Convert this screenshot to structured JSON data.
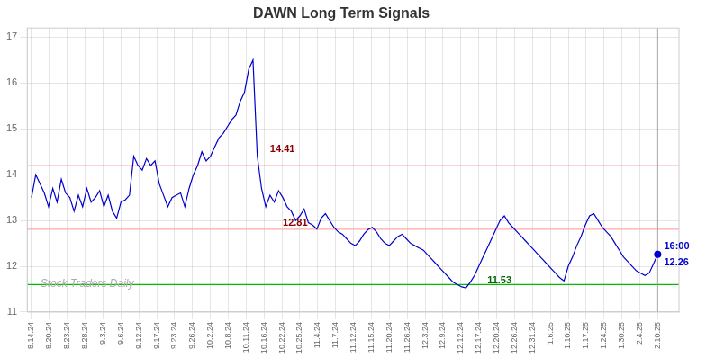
{
  "chart_data": {
    "type": "line",
    "title": "DAWN Long Term Signals",
    "title_color": "#333333",
    "x": [
      0,
      1,
      2,
      3,
      4,
      5,
      6,
      7,
      8,
      9,
      10,
      11,
      12,
      13,
      14,
      15,
      16,
      17,
      18,
      19,
      20,
      21,
      22,
      23,
      24,
      25,
      26,
      27,
      28,
      29,
      30,
      31,
      32,
      33,
      34,
      35,
      36,
      37,
      38,
      39,
      40,
      41,
      42,
      43,
      44,
      45,
      46,
      47,
      48,
      49,
      50,
      51,
      52,
      53,
      54,
      55,
      56,
      57,
      58,
      59,
      60,
      61,
      62,
      63,
      64,
      65,
      66,
      67,
      68,
      69,
      70,
      71,
      72,
      73,
      74,
      75,
      76,
      77,
      78,
      79,
      80,
      81,
      82,
      83,
      84,
      85,
      86,
      87,
      88,
      89,
      90,
      91,
      92,
      93,
      94,
      95,
      96,
      97,
      98,
      99,
      100,
      101,
      102,
      103,
      104,
      105,
      106,
      107,
      108,
      109,
      110,
      111,
      112,
      113,
      114,
      115,
      116,
      117,
      118,
      119,
      120,
      121,
      122,
      123,
      124,
      125,
      126,
      127,
      128,
      129,
      130,
      131,
      132,
      133,
      134,
      135,
      136,
      137,
      138,
      139,
      140,
      141,
      142,
      143,
      144,
      145,
      146,
      147
    ],
    "series": [
      {
        "type": "line",
        "color": "#0000cc",
        "values": [
          13.5,
          14.0,
          13.8,
          13.6,
          13.3,
          13.7,
          13.4,
          13.9,
          13.6,
          13.5,
          13.2,
          13.55,
          13.3,
          13.7,
          13.4,
          13.5,
          13.65,
          13.3,
          13.55,
          13.2,
          13.05,
          13.4,
          13.45,
          13.55,
          14.4,
          14.2,
          14.1,
          14.35,
          14.2,
          14.3,
          13.8,
          13.55,
          13.3,
          13.5,
          13.55,
          13.6,
          13.3,
          13.7,
          14.0,
          14.2,
          14.5,
          14.3,
          14.4,
          14.6,
          14.8,
          14.9,
          15.05,
          15.2,
          15.3,
          15.6,
          15.8,
          16.3,
          16.5,
          14.41,
          13.7,
          13.3,
          13.55,
          13.4,
          13.65,
          13.5,
          13.3,
          13.2,
          13.0,
          13.1,
          13.25,
          12.95,
          12.9,
          12.81,
          13.05,
          13.15,
          13.0,
          12.85,
          12.75,
          12.7,
          12.6,
          12.5,
          12.45,
          12.55,
          12.7,
          12.8,
          12.85,
          12.75,
          12.6,
          12.5,
          12.45,
          12.55,
          12.65,
          12.7,
          12.6,
          12.5,
          12.45,
          12.4,
          12.35,
          12.25,
          12.15,
          12.05,
          11.95,
          11.85,
          11.75,
          11.65,
          11.6,
          11.55,
          11.53,
          11.65,
          11.8,
          12.0,
          12.2,
          12.4,
          12.6,
          12.8,
          13.0,
          13.1,
          12.95,
          12.85,
          12.75,
          12.65,
          12.55,
          12.45,
          12.35,
          12.25,
          12.15,
          12.05,
          11.95,
          11.85,
          11.75,
          11.68,
          12.0,
          12.2,
          12.45,
          12.65,
          12.9,
          13.1,
          13.15,
          13.0,
          12.85,
          12.75,
          12.65,
          12.5,
          12.35,
          12.2,
          12.1,
          12.0,
          11.9,
          11.85,
          11.8,
          11.85,
          12.05,
          12.26
        ]
      },
      {
        "type": "scatter",
        "color": "#0000cc",
        "marker": "circle",
        "x": [
          147
        ],
        "values": [
          12.26
        ]
      }
    ],
    "hlines": [
      {
        "y": 14.2,
        "color": "#ffaaaa"
      },
      {
        "y": 12.81,
        "color": "#ffaaaa"
      },
      {
        "y": 11.6,
        "color": "#00bb00"
      }
    ],
    "vlines": [
      {
        "x": 147,
        "color": "#999999"
      }
    ],
    "annotations": [
      {
        "text": "14.41",
        "color": "#8b0000",
        "x": 56,
        "y": 14.55
      },
      {
        "text": "12.81",
        "color": "#8b0000",
        "x": 59,
        "y": 12.95
      },
      {
        "text": "11.53",
        "color": "#006600",
        "x": 107,
        "y": 11.68
      },
      {
        "text": "16:00",
        "color": "#0000cc",
        "x": 148.5,
        "y": 12.44
      },
      {
        "text": "12.26",
        "color": "#0000cc",
        "x": 148.5,
        "y": 12.08
      }
    ],
    "watermark": "Stock Traders Daily",
    "xlim": [
      -1,
      152
    ],
    "xticks": [
      {
        "value": 0,
        "label": "8.14.24"
      },
      {
        "value": 4.2,
        "label": "8.20.24"
      },
      {
        "value": 8.4,
        "label": "8.23.24"
      },
      {
        "value": 12.6,
        "label": "8.28.24"
      },
      {
        "value": 16.8,
        "label": "9.3.24"
      },
      {
        "value": 21,
        "label": "9.6.24"
      },
      {
        "value": 25.2,
        "label": "9.12.24"
      },
      {
        "value": 29.4,
        "label": "9.17.24"
      },
      {
        "value": 33.6,
        "label": "9.23.24"
      },
      {
        "value": 37.8,
        "label": "9.26.24"
      },
      {
        "value": 42,
        "label": "10.2.24"
      },
      {
        "value": 46.2,
        "label": "10.8.24"
      },
      {
        "value": 50.4,
        "label": "10.11.24"
      },
      {
        "value": 54.6,
        "label": "10.16.24"
      },
      {
        "value": 58.8,
        "label": "10.22.24"
      },
      {
        "value": 63,
        "label": "10.25.24"
      },
      {
        "value": 67.2,
        "label": "11.4.24"
      },
      {
        "value": 71.4,
        "label": "11.7.24"
      },
      {
        "value": 75.6,
        "label": "11.12.24"
      },
      {
        "value": 79.8,
        "label": "11.15.24"
      },
      {
        "value": 84,
        "label": "11.20.24"
      },
      {
        "value": 88.2,
        "label": "11.26.24"
      },
      {
        "value": 92.4,
        "label": "12.3.24"
      },
      {
        "value": 96.6,
        "label": "12.9.24"
      },
      {
        "value": 100.8,
        "label": "12.12.24"
      },
      {
        "value": 105,
        "label": "12.17.24"
      },
      {
        "value": 109.2,
        "label": "12.20.24"
      },
      {
        "value": 113.4,
        "label": "12.26.24"
      },
      {
        "value": 117.6,
        "label": "12.31.24"
      },
      {
        "value": 121.8,
        "label": "1.6.25"
      },
      {
        "value": 126,
        "label": "1.10.25"
      },
      {
        "value": 130.2,
        "label": "1.17.25"
      },
      {
        "value": 134.4,
        "label": "1.24.25"
      },
      {
        "value": 138.6,
        "label": "1.30.25"
      },
      {
        "value": 142.8,
        "label": "2.4.25"
      },
      {
        "value": 147,
        "label": "2.10.25"
      }
    ],
    "ylim": [
      11.0,
      17.2
    ],
    "yticks": [
      11,
      12,
      13,
      14,
      15,
      16,
      17
    ],
    "grid": true
  }
}
